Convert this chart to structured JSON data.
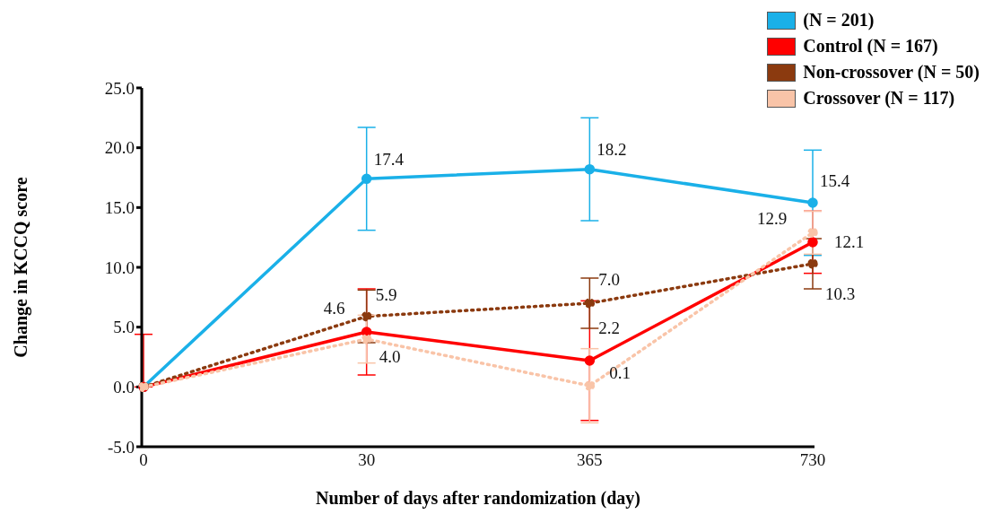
{
  "chart_data": {
    "type": "line",
    "xlabel": "Number of days after randomization (day)",
    "ylabel": "Change in KCCQ score",
    "categories": [
      "0",
      "30",
      "365",
      "730"
    ],
    "series": [
      {
        "name": "(N = 201)",
        "color": "#1ab0e8",
        "line_style": "solid",
        "values": [
          0,
          17.4,
          18.2,
          15.4
        ],
        "errors": [
          null,
          4.3,
          4.3,
          4.4
        ],
        "value_labels": [
          null,
          "17.4",
          "18.2",
          "15.4"
        ]
      },
      {
        "name": "Control (N = 167)",
        "color": "#ff0000",
        "line_style": "solid",
        "values": [
          0,
          4.6,
          2.2,
          12.1
        ],
        "errors": [
          [
            0,
            4.4
          ],
          3.6,
          5.0,
          2.6
        ],
        "value_labels": [
          null,
          "4.6",
          "2.2",
          "12.1"
        ]
      },
      {
        "name": "Non-crossover (N = 50)",
        "color": "#8b3a0f",
        "line_style": "dotted",
        "values": [
          0,
          5.9,
          7.0,
          10.3
        ],
        "errors": [
          null,
          2.2,
          2.1,
          2.1
        ],
        "value_labels": [
          null,
          "5.9",
          "7.0",
          "10.3"
        ]
      },
      {
        "name": "Crossover (N = 117)",
        "color": "#f9c4a8",
        "line_style": "dotted",
        "values": [
          0,
          4.0,
          0.1,
          12.9
        ],
        "errors": [
          null,
          2.0,
          3.1,
          1.8
        ],
        "value_labels": [
          null,
          "4.0",
          "0.1",
          "12.9"
        ]
      }
    ],
    "ylim": [
      -5,
      25
    ],
    "yticks": [
      {
        "value": -5,
        "label": "-5.0"
      },
      {
        "value": 0,
        "label": "0.0"
      },
      {
        "value": 5,
        "label": "5.0"
      },
      {
        "value": 10,
        "label": "10.0"
      },
      {
        "value": 15,
        "label": "15.0"
      },
      {
        "value": 20,
        "label": "20.0"
      },
      {
        "value": 25,
        "label": "25.0"
      }
    ],
    "grid": false,
    "legend": "top right",
    "marker": "circle"
  }
}
